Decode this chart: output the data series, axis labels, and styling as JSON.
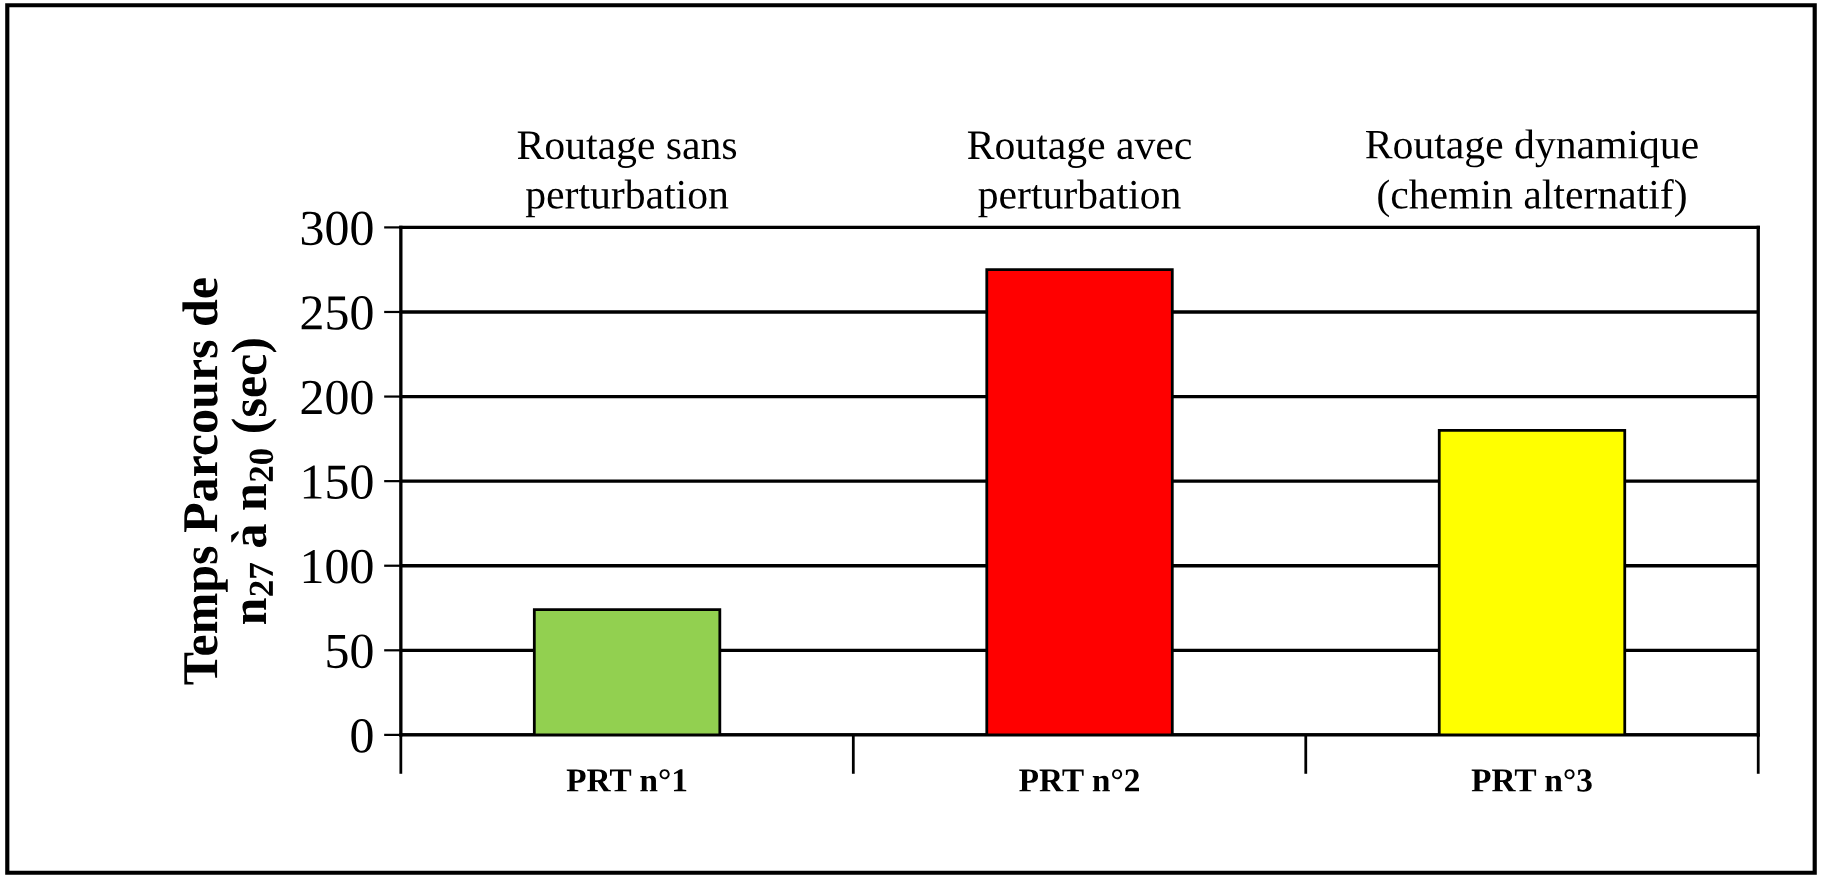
{
  "chart_data": {
    "type": "bar",
    "ylabel": "Temps Parcours de\nn$_{27}$ à n$_{20}$ (sec)",
    "categories": [
      "PRT n°1",
      "PRT n°2",
      "PRT n°3"
    ],
    "values": [
      74,
      275,
      180
    ],
    "colors": [
      "#92d050",
      "#ff0000",
      "#ffff00"
    ],
    "ylim": [
      0,
      300
    ],
    "yticks": [
      0,
      50,
      100,
      150,
      200,
      250,
      300
    ],
    "grid": "y",
    "annotations": [
      "Routage sans\nperturbation",
      "Routage avec\nperturbation",
      "Routage dynamique\n(chemin alternatif)"
    ]
  }
}
